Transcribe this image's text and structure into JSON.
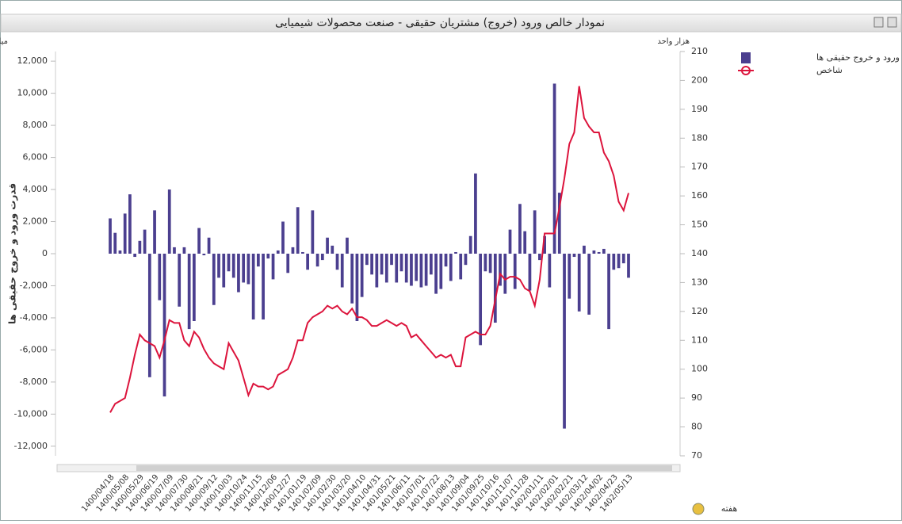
{
  "chart_data": {
    "type": "bar-line",
    "title": "نمودار خالص ورود (خروج) مشتریان حقیقی - صنعت محصولات شیمیایی",
    "y_unit": "میلیارد ریال",
    "y2_unit": "هزار واحد",
    "y_label": "قدرت ورود و خروج حقیقی ها",
    "x_label": "هفته",
    "legend": "right",
    "categories": [
      "1400/04/18",
      null,
      null,
      "1400/05/08",
      null,
      null,
      "1400/05/29",
      null,
      null,
      "1400/06/19",
      null,
      null,
      "1400/07/09",
      null,
      null,
      "1400/07/30",
      null,
      null,
      "1400/08/21",
      null,
      null,
      "1400/09/12",
      null,
      null,
      "1400/10/03",
      null,
      null,
      "1400/10/24",
      null,
      null,
      "1400/11/15",
      null,
      null,
      "1400/12/06",
      null,
      null,
      "1400/12/27",
      null,
      null,
      "1401/01/19",
      null,
      null,
      "1401/02/09",
      null,
      null,
      "1401/02/30",
      null,
      null,
      "1401/03/20",
      null,
      null,
      "1401/04/10",
      null,
      null,
      "1401/04/31",
      null,
      null,
      "1401/05/21",
      null,
      null,
      "1401/06/11",
      null,
      null,
      "1401/07/01",
      null,
      null,
      "1401/07/22",
      null,
      null,
      "1401/08/13",
      null,
      null,
      "1401/09/04",
      null,
      null,
      "1401/09/25",
      null,
      null,
      "1401/10/16",
      null,
      null,
      "1401/11/07",
      null,
      null,
      "1401/11/28",
      null,
      null,
      "1402/01/11",
      null,
      null,
      "1402/02/01",
      null,
      null,
      "1402/02/21",
      null,
      null,
      "1402/03/12",
      null,
      null,
      "1402/04/02",
      null,
      null,
      "1402/04/23",
      null,
      null,
      "1402/05/13"
    ],
    "series": [
      {
        "name": "قدرت ورود و خروج حقیقی ها",
        "color": "#4b3f8f",
        "kind": "bar",
        "axis": "y",
        "values": [
          2200,
          1300,
          200,
          2500,
          3700,
          -200,
          800,
          1500,
          -7700,
          2700,
          -2900,
          -8900,
          4000,
          400,
          -3300,
          400,
          -4700,
          -4200,
          1600,
          -100,
          1000,
          -3200,
          -1500,
          -2100,
          -1100,
          -1500,
          -2400,
          -1800,
          -1900,
          -4100,
          -800,
          -4100,
          -300,
          -1600,
          200,
          2000,
          -1200,
          400,
          2900,
          100,
          -1000,
          2700,
          -800,
          -400,
          1000,
          500,
          -1000,
          -2100,
          1000,
          -3100,
          -4200,
          -2700,
          -700,
          -1300,
          -2100,
          -1300,
          -1800,
          -700,
          -1800,
          -1100,
          -1800,
          -2000,
          -1700,
          -2100,
          -2000,
          -1300,
          -2500,
          -2200,
          -800,
          -1700,
          100,
          -1600,
          -700,
          1100,
          5000,
          -5700,
          -1100,
          -1200,
          -4300,
          -2000,
          -2500,
          1500,
          -2200,
          3100,
          1400,
          -2300,
          2700,
          -400,
          1100,
          -2100,
          10600,
          3800,
          -10900,
          -2800,
          -200,
          -3600,
          500,
          -3800,
          200,
          100,
          300,
          -4700,
          -1000,
          -900,
          -600,
          -1500
        ]
      },
      {
        "name": "شاخص",
        "color": "#dc143c",
        "kind": "line",
        "axis": "y2",
        "values": [
          85,
          88,
          89,
          90,
          97,
          105,
          112,
          110,
          109,
          108,
          104,
          110,
          117,
          116,
          116,
          110,
          108,
          113,
          111,
          107,
          104,
          102,
          101,
          100,
          109,
          106,
          103,
          97,
          91,
          95,
          94,
          94,
          93,
          94,
          98,
          99,
          100,
          104,
          110,
          110,
          116,
          118,
          119,
          120,
          122,
          121,
          122,
          120,
          119,
          121,
          118,
          118,
          117,
          115,
          115,
          116,
          117,
          116,
          115,
          116,
          115,
          111,
          112,
          110,
          108,
          106,
          104,
          105,
          104,
          105,
          101,
          101,
          111,
          112,
          113,
          112,
          112,
          115,
          124,
          133,
          131,
          132,
          132,
          131,
          128,
          127,
          122,
          131,
          147,
          147,
          147,
          156,
          166,
          178,
          182,
          198,
          187,
          184,
          182,
          182,
          175,
          172,
          167,
          158,
          155,
          161
        ]
      }
    ],
    "ylim": [
      -12600,
      12600
    ],
    "yticks": [
      {
        "value": -12000,
        "label": "-12,000"
      },
      {
        "value": -10000,
        "label": "-10,000"
      },
      {
        "value": -8000,
        "label": "-8,000"
      },
      {
        "value": -6000,
        "label": "-6,000"
      },
      {
        "value": -4000,
        "label": "-4,000"
      },
      {
        "value": -2000,
        "label": "-2,000"
      },
      0,
      {
        "value": 2000,
        "label": "2,000"
      },
      {
        "value": 4000,
        "label": "4,000"
      },
      {
        "value": 6000,
        "label": "6,000"
      },
      {
        "value": 8000,
        "label": "8,000"
      },
      {
        "value": 10000,
        "label": "10,000"
      },
      {
        "value": 12000,
        "label": "12,000"
      }
    ],
    "y2lim": [
      70,
      210
    ],
    "y2ticks": [
      70,
      80,
      90,
      100,
      110,
      120,
      130,
      140,
      150,
      160,
      170,
      180,
      190,
      200,
      210
    ]
  }
}
